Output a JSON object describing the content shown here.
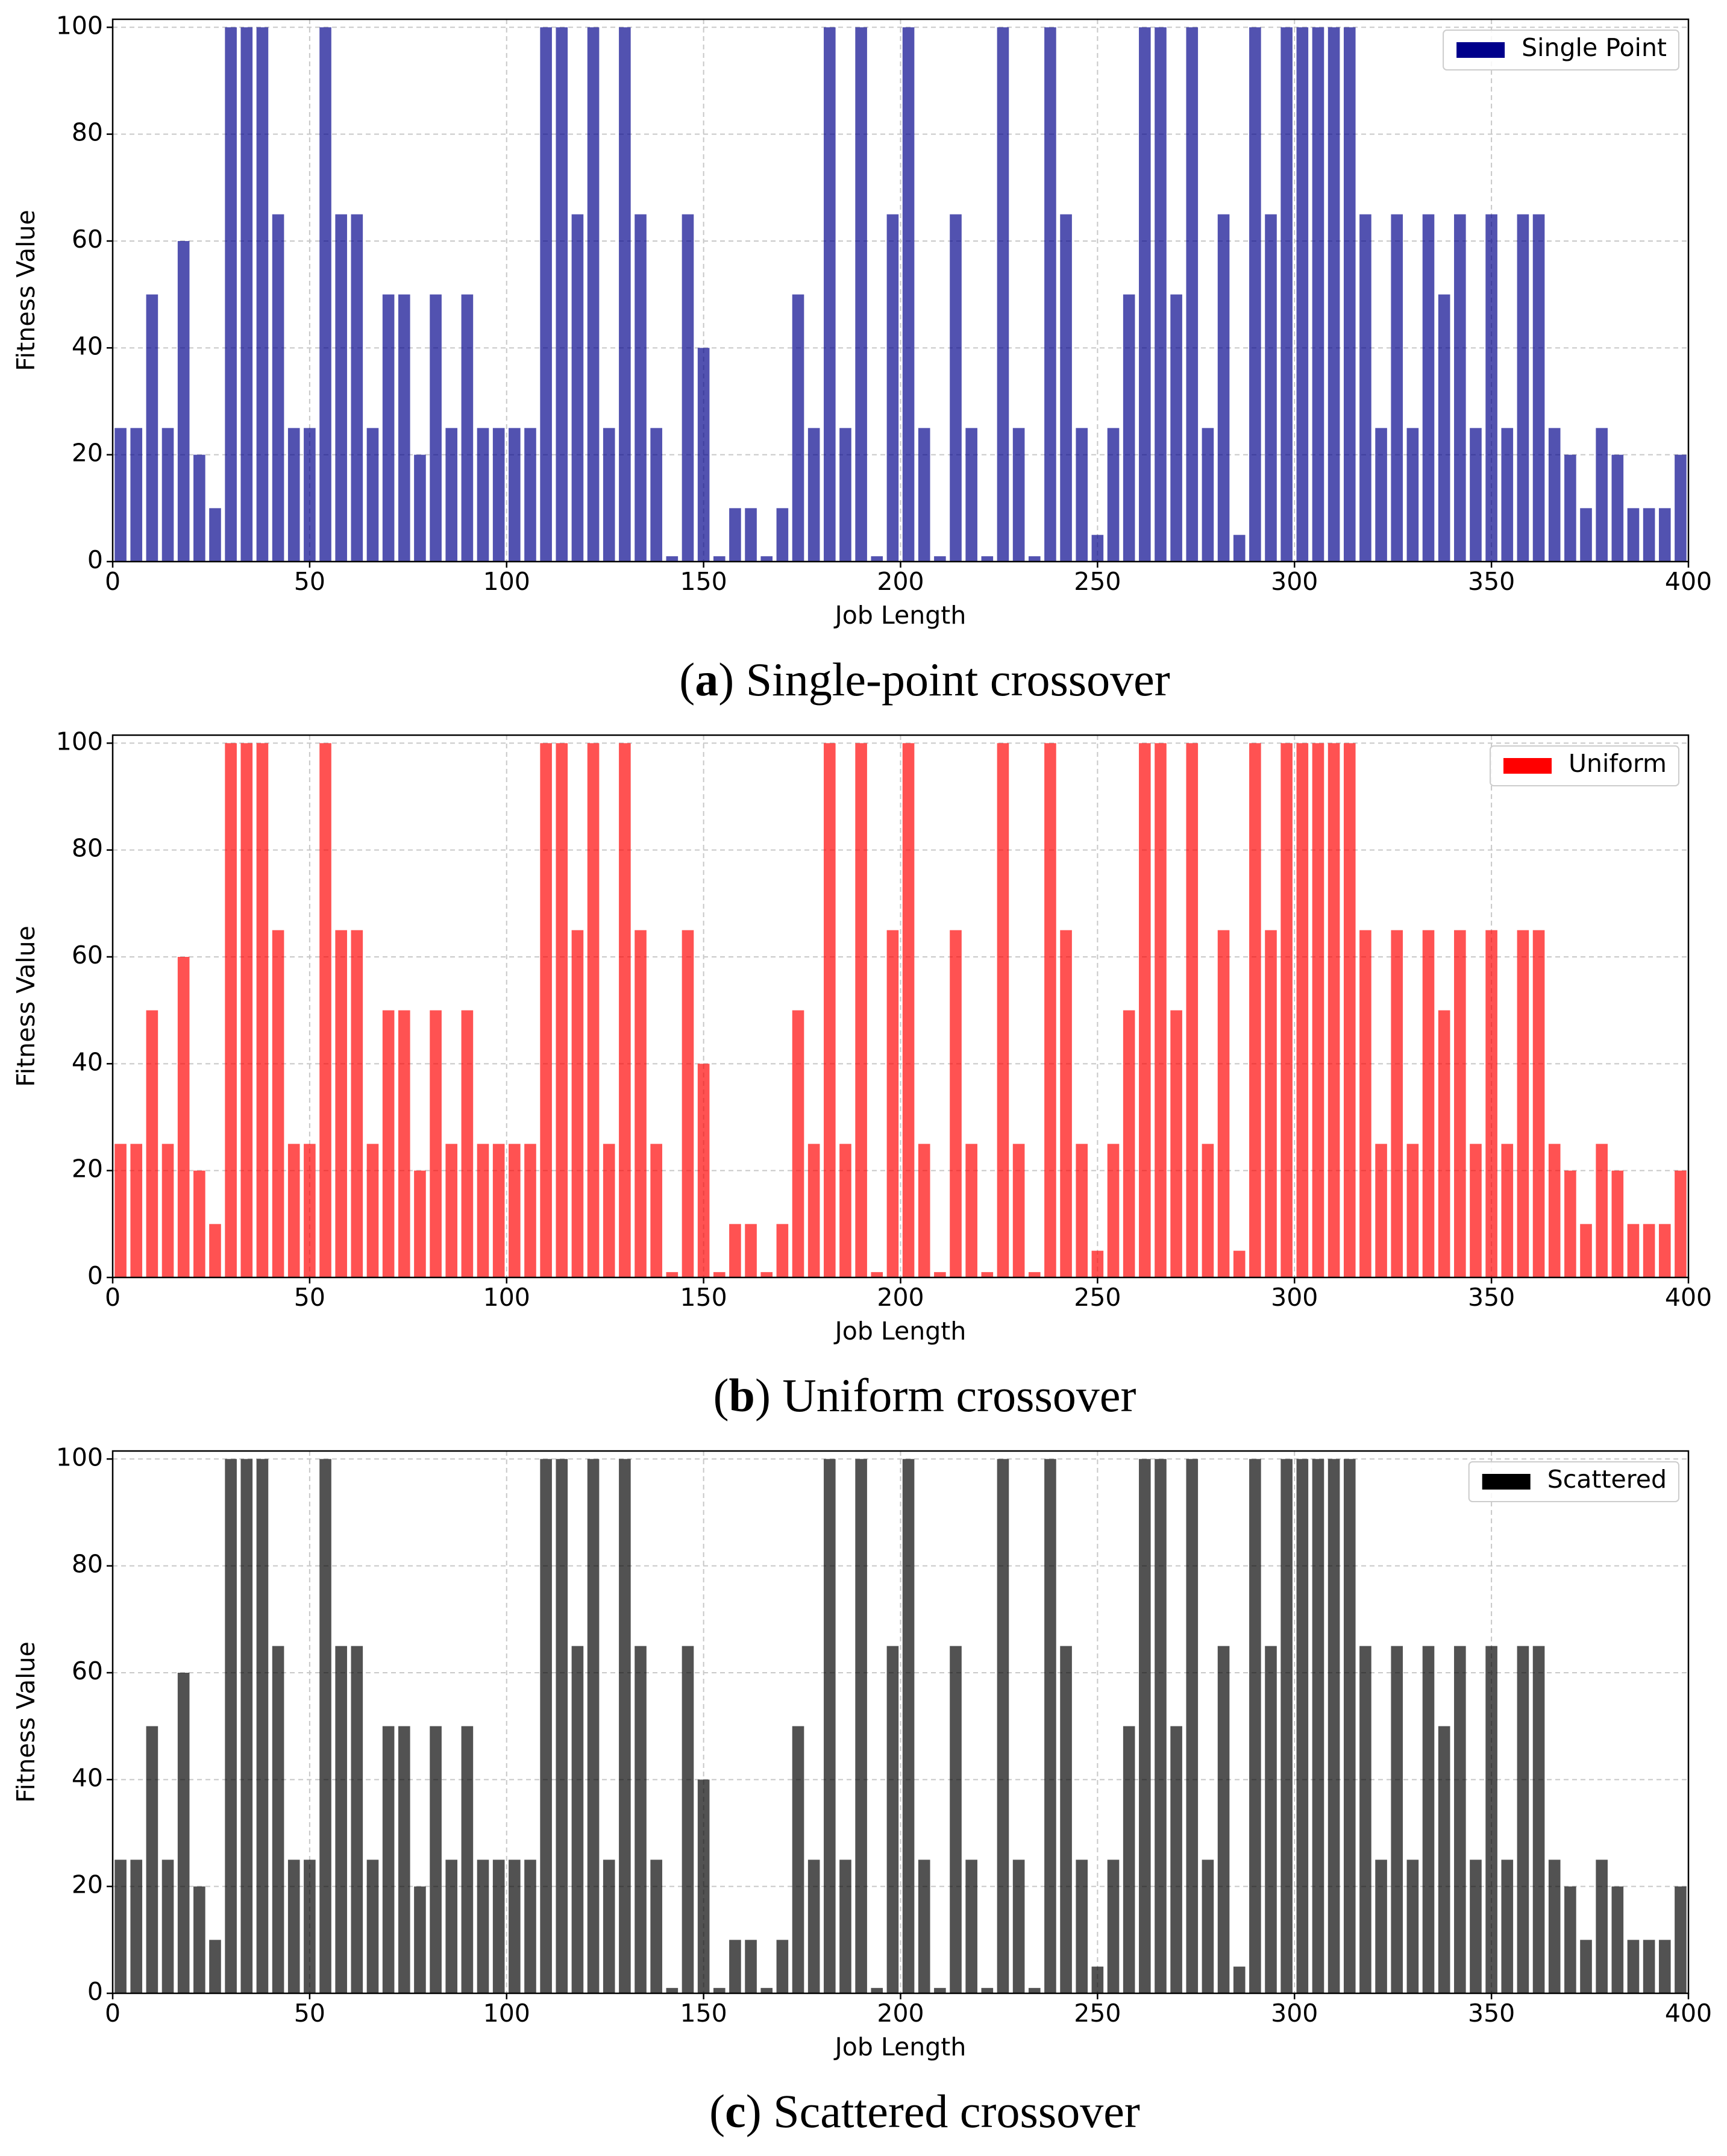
{
  "chart_data": [
    {
      "type": "bar",
      "series": [
        {
          "name": "Single Point",
          "color": "#00008b"
        }
      ],
      "xlabel": "Job Length",
      "ylabel": "Fitness Value",
      "caption": {
        "open": "(",
        "label": "a",
        "text": ") Single-point crossover"
      }
    },
    {
      "type": "bar",
      "series": [
        {
          "name": "Uniform",
          "color": "#ff0000"
        }
      ],
      "xlabel": "Job Length",
      "ylabel": "Fitness Value",
      "caption": {
        "open": "(",
        "label": "b",
        "text": ") Uniform crossover"
      }
    },
    {
      "type": "bar",
      "series": [
        {
          "name": "Scattered",
          "color": "#000000"
        }
      ],
      "xlabel": "Job Length",
      "ylabel": "Fitness Value",
      "caption": {
        "open": "(",
        "label": "c",
        "text": ") Scattered crossover"
      }
    }
  ]
}
